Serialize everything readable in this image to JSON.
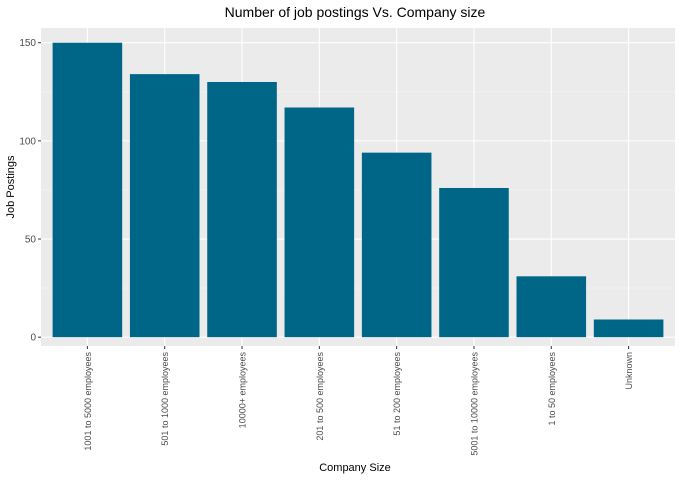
{
  "chart_data": {
    "type": "bar",
    "title": "Number of job postings Vs. Company size",
    "xlabel": "Company Size",
    "ylabel": "Job Postings",
    "categories": [
      "1001 to 5000 employees",
      "501 to 1000 employees",
      "10000+ employees",
      "201 to 500 employees",
      "51 to 200 employees",
      "5001 to 10000 employees",
      "1 to 50 employees",
      "Unknown"
    ],
    "values": [
      150,
      134,
      130,
      117,
      94,
      76,
      31,
      9
    ],
    "ylim": [
      -4.5,
      157.5
    ],
    "yticks": [
      0,
      50,
      100,
      150
    ],
    "ytick_labels": [
      "0",
      "50",
      "100",
      "150"
    ],
    "grid": true,
    "legend": "none",
    "colors": {
      "bar": "#006687",
      "panel": "#ebebeb",
      "grid_major": "#ffffff",
      "grid_minor": "#f5f5f5",
      "text": "#000000",
      "tick_text": "#4d4d4d",
      "tick": "#333333"
    }
  }
}
